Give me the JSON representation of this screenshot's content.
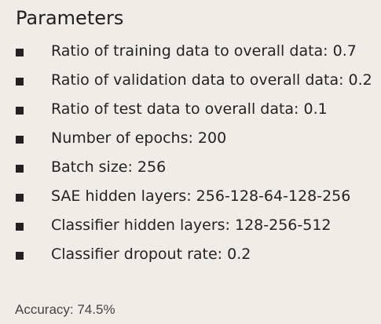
{
  "panel": {
    "title": "Parameters",
    "items": [
      {
        "bullet": "■",
        "label": "Ratio of training data to overall data: 0.7"
      },
      {
        "bullet": "■",
        "label": "Ratio of validation data to overall data: 0.2"
      },
      {
        "bullet": "■",
        "label": "Ratio of test data to overall data: 0.1"
      },
      {
        "bullet": "■",
        "label": "Number of epochs: 200"
      },
      {
        "bullet": "■",
        "label": "Batch size: 256"
      },
      {
        "bullet": "■",
        "label": "SAE hidden layers: 256-128-64-128-256"
      },
      {
        "bullet": "■",
        "label": "Classifier hidden layers: 128-256-512"
      },
      {
        "bullet": "■",
        "label": "Classifier dropout rate: 0.2"
      }
    ],
    "accuracy": "Accuracy: 74.5%"
  },
  "colors": {
    "background": "#efede5",
    "text": "#232323",
    "bullet": "#222222",
    "accuracy_text": "#444444"
  }
}
